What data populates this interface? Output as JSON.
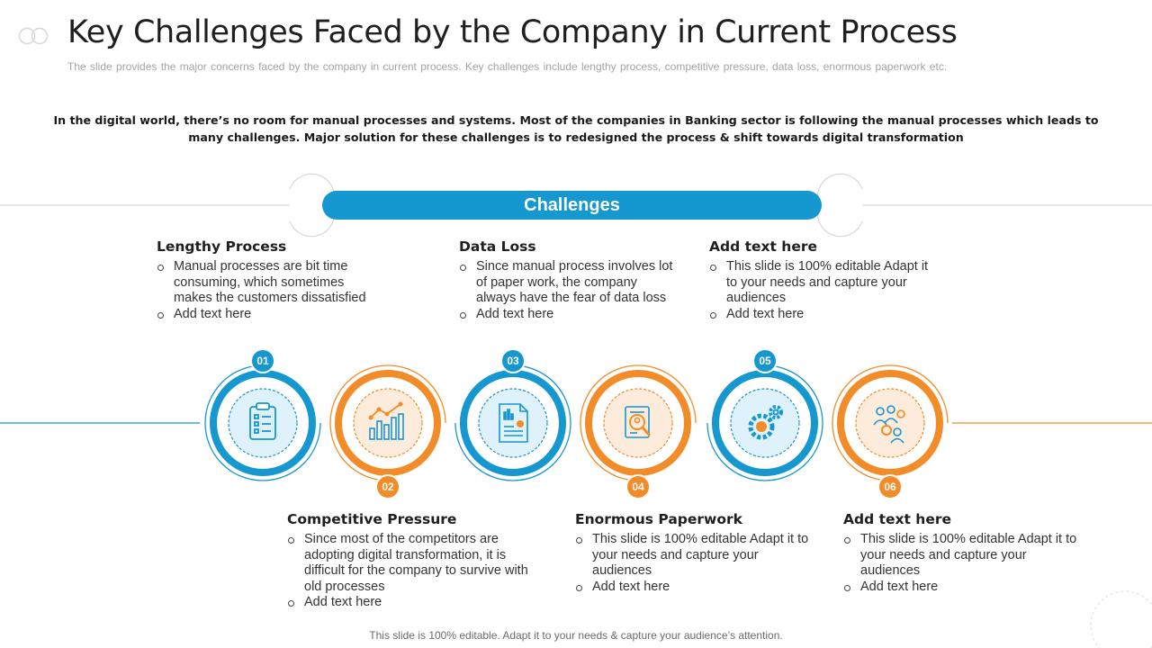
{
  "header": {
    "title": "Key Challenges Faced by the Company in Current Process",
    "subtitle": "The slide provides the major concerns faced by the company in current process. Key challenges include lengthy process, competitive pressure, data loss, enormous paperwork etc."
  },
  "intro": "In the digital world, there’s no room for manual processes and systems. Most of the companies in Banking sector is following the manual processes which leads to many challenges. Major solution for these challenges is to redesigned the process & shift towards digital transformation",
  "banner": "Challenges",
  "colors": {
    "blue": "#1597cf",
    "orange": "#f28c28"
  },
  "items": [
    {
      "number": "01",
      "icon": "clipboard-checklist-icon",
      "title": "Lengthy Process",
      "bullets": [
        "Manual processes are bit time consuming, which sometimes makes the customers dissatisfied",
        "Add text here"
      ]
    },
    {
      "number": "02",
      "icon": "bar-chart-icon",
      "title": "Competitive Pressure",
      "bullets": [
        "Since most of the competitors are adopting digital transformation, it is difficult for the company to survive with old processes",
        "Add text here"
      ]
    },
    {
      "number": "03",
      "icon": "report-document-icon",
      "title": "Data Loss",
      "bullets": [
        "Since manual process involves lot of paper work, the company always have the fear of data loss",
        "Add text here"
      ]
    },
    {
      "number": "04",
      "icon": "document-search-icon",
      "title": "Enormous Paperwork",
      "bullets": [
        "This slide is 100% editable Adapt it to your needs and capture your audiences",
        "Add text here"
      ]
    },
    {
      "number": "05",
      "icon": "gears-icon",
      "title": "Add text here",
      "bullets": [
        "This slide is 100% editable Adapt it to your needs and capture your audiences",
        "Add text here"
      ]
    },
    {
      "number": "06",
      "icon": "team-icon",
      "title": "Add text here",
      "bullets": [
        "This slide is 100% editable Adapt it to your needs and capture your audiences",
        "Add text here"
      ]
    }
  ],
  "footer": "This slide is 100% editable. Adapt it to your needs & capture your audience’s attention."
}
